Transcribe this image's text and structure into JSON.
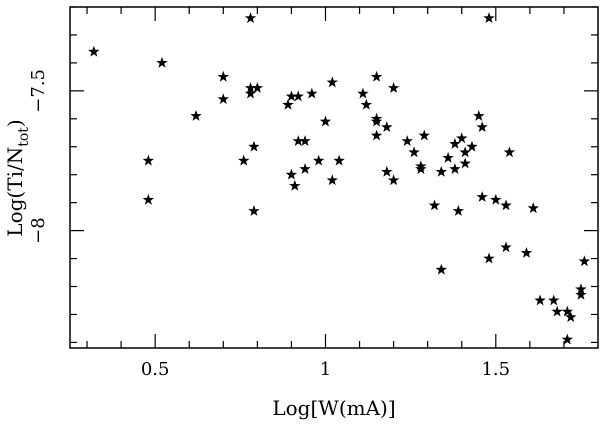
{
  "chart_data": {
    "type": "scatter",
    "xlabel": "Log[W(mA)]",
    "ylabel_main": "Log(Ti/N",
    "ylabel_sub": "tot",
    "ylabel_close": ")",
    "xlim": [
      0.25,
      1.8
    ],
    "ylim": [
      -8.42,
      -7.2
    ],
    "x_ticks": [
      {
        "value": 0.5,
        "label": "0.5"
      },
      {
        "value": 1.0,
        "label": "1"
      },
      {
        "value": 1.5,
        "label": "1.5"
      }
    ],
    "y_ticks": [
      {
        "value": -7.5,
        "label": "−7.5"
      },
      {
        "value": -8.0,
        "label": "−8"
      }
    ],
    "points": [
      {
        "x": 0.32,
        "y": -7.36
      },
      {
        "x": 0.52,
        "y": -7.4
      },
      {
        "x": 0.48,
        "y": -7.75
      },
      {
        "x": 0.48,
        "y": -7.89
      },
      {
        "x": 0.62,
        "y": -7.59
      },
      {
        "x": 0.7,
        "y": -7.45
      },
      {
        "x": 0.7,
        "y": -7.53
      },
      {
        "x": 0.78,
        "y": -7.24
      },
      {
        "x": 0.78,
        "y": -7.49
      },
      {
        "x": 0.78,
        "y": -7.51
      },
      {
        "x": 0.8,
        "y": -7.49
      },
      {
        "x": 0.76,
        "y": -7.75
      },
      {
        "x": 0.79,
        "y": -7.7
      },
      {
        "x": 0.79,
        "y": -7.93
      },
      {
        "x": 0.89,
        "y": -7.55
      },
      {
        "x": 0.9,
        "y": -7.52
      },
      {
        "x": 0.92,
        "y": -7.52
      },
      {
        "x": 0.92,
        "y": -7.68
      },
      {
        "x": 0.94,
        "y": -7.68
      },
      {
        "x": 0.9,
        "y": -7.8
      },
      {
        "x": 0.91,
        "y": -7.84
      },
      {
        "x": 0.94,
        "y": -7.78
      },
      {
        "x": 0.96,
        "y": -7.51
      },
      {
        "x": 0.98,
        "y": -7.75
      },
      {
        "x": 1.0,
        "y": -7.61
      },
      {
        "x": 1.02,
        "y": -7.47
      },
      {
        "x": 1.02,
        "y": -7.82
      },
      {
        "x": 1.04,
        "y": -7.75
      },
      {
        "x": 1.11,
        "y": -7.51
      },
      {
        "x": 1.12,
        "y": -7.55
      },
      {
        "x": 1.15,
        "y": -7.45
      },
      {
        "x": 1.15,
        "y": -7.6
      },
      {
        "x": 1.15,
        "y": -7.61
      },
      {
        "x": 1.15,
        "y": -7.66
      },
      {
        "x": 1.18,
        "y": -7.63
      },
      {
        "x": 1.18,
        "y": -7.79
      },
      {
        "x": 1.2,
        "y": -7.49
      },
      {
        "x": 1.2,
        "y": -7.82
      },
      {
        "x": 1.24,
        "y": -7.68
      },
      {
        "x": 1.26,
        "y": -7.72
      },
      {
        "x": 1.28,
        "y": -7.77
      },
      {
        "x": 1.28,
        "y": -7.78
      },
      {
        "x": 1.29,
        "y": -7.66
      },
      {
        "x": 1.32,
        "y": -7.91
      },
      {
        "x": 1.34,
        "y": -7.79
      },
      {
        "x": 1.34,
        "y": -8.14
      },
      {
        "x": 1.36,
        "y": -7.74
      },
      {
        "x": 1.38,
        "y": -7.69
      },
      {
        "x": 1.38,
        "y": -7.78
      },
      {
        "x": 1.39,
        "y": -7.93
      },
      {
        "x": 1.4,
        "y": -7.67
      },
      {
        "x": 1.41,
        "y": -7.72
      },
      {
        "x": 1.41,
        "y": -7.76
      },
      {
        "x": 1.43,
        "y": -7.7
      },
      {
        "x": 1.45,
        "y": -7.59
      },
      {
        "x": 1.46,
        "y": -7.63
      },
      {
        "x": 1.46,
        "y": -7.88
      },
      {
        "x": 1.48,
        "y": -7.24
      },
      {
        "x": 1.48,
        "y": -8.1
      },
      {
        "x": 1.5,
        "y": -7.89
      },
      {
        "x": 1.53,
        "y": -7.91
      },
      {
        "x": 1.54,
        "y": -7.72
      },
      {
        "x": 1.53,
        "y": -8.06
      },
      {
        "x": 1.59,
        "y": -8.08
      },
      {
        "x": 1.61,
        "y": -7.92
      },
      {
        "x": 1.63,
        "y": -8.25
      },
      {
        "x": 1.67,
        "y": -8.25
      },
      {
        "x": 1.68,
        "y": -8.29
      },
      {
        "x": 1.71,
        "y": -8.29
      },
      {
        "x": 1.72,
        "y": -8.31
      },
      {
        "x": 1.71,
        "y": -8.39
      },
      {
        "x": 1.75,
        "y": -8.23
      },
      {
        "x": 1.75,
        "y": -8.21
      },
      {
        "x": 1.76,
        "y": -8.11
      }
    ]
  }
}
